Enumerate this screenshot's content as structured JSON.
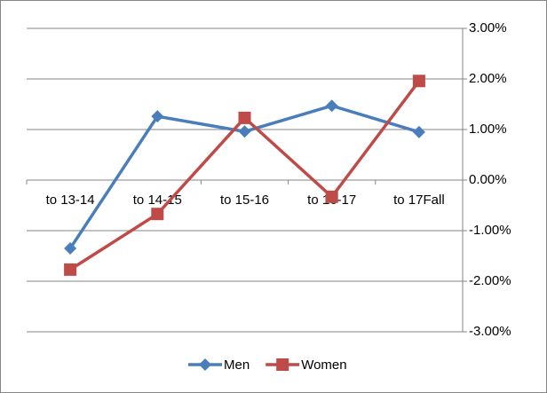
{
  "chart_data": {
    "type": "line",
    "categories": [
      "to 13-14",
      "to 14-15",
      "to 15-16",
      "to 16-17",
      "to 17Fall"
    ],
    "series": [
      {
        "name": "Men",
        "color": "#4a7ebb",
        "marker": "diamond",
        "values": [
          -1.35,
          1.26,
          0.96,
          1.47,
          0.95
        ]
      },
      {
        "name": "Women",
        "color": "#be4b48",
        "marker": "square",
        "values": [
          -1.77,
          -0.67,
          1.23,
          -0.33,
          1.96
        ]
      }
    ],
    "ylim": [
      -3,
      3
    ],
    "yticks": [
      {
        "value": 3,
        "label": "3.00%"
      },
      {
        "value": 2,
        "label": "2.00%"
      },
      {
        "value": 1,
        "label": "1.00%"
      },
      {
        "value": 0,
        "label": "0.00%"
      },
      {
        "value": -1,
        "label": "-1.00%"
      },
      {
        "value": -2,
        "label": "-2.00%"
      },
      {
        "value": -3,
        "label": "-3.00%"
      }
    ],
    "grid": true,
    "y_axis_side": "right",
    "legend": "bottom"
  }
}
